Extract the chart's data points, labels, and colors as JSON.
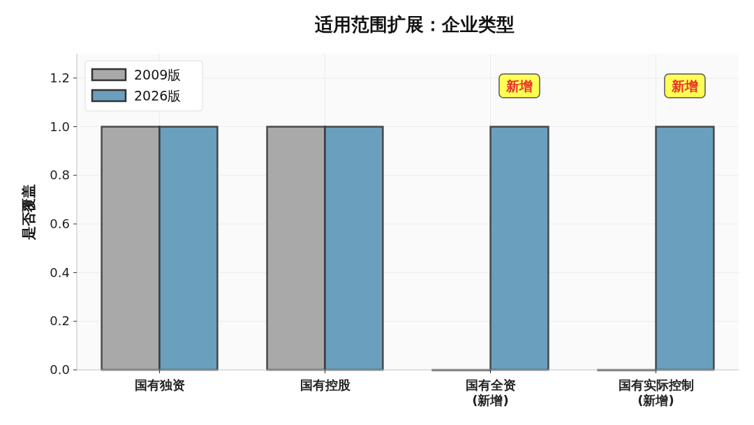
{
  "chart_data": {
    "type": "bar",
    "title": "适用范围扩展：企业类型",
    "ylabel": "是否覆盖",
    "categories": [
      "国有独资",
      "国有控股",
      "国有全资\n(新增)",
      "国有实际控制\n(新增)"
    ],
    "series": [
      {
        "name": "2009版",
        "color": "#a9a9a9",
        "values": [
          1,
          1,
          0,
          0
        ]
      },
      {
        "name": "2026版",
        "color": "#6a9fbe",
        "values": [
          1,
          1,
          1,
          1
        ]
      }
    ],
    "ylim": [
      0,
      1.3
    ],
    "yticks": [
      {
        "value": 0,
        "label": "0.0"
      },
      {
        "value": 0.2,
        "label": "0.2"
      },
      {
        "value": 0.4,
        "label": "0.4"
      },
      {
        "value": 0.6,
        "label": "0.6"
      },
      {
        "value": 0.8,
        "label": "0.8"
      },
      {
        "value": 1,
        "label": "1.0"
      },
      {
        "value": 1.2,
        "label": "1.2"
      }
    ],
    "annotations": [
      "新增",
      "新增"
    ],
    "grid": true,
    "legend": "top left"
  }
}
